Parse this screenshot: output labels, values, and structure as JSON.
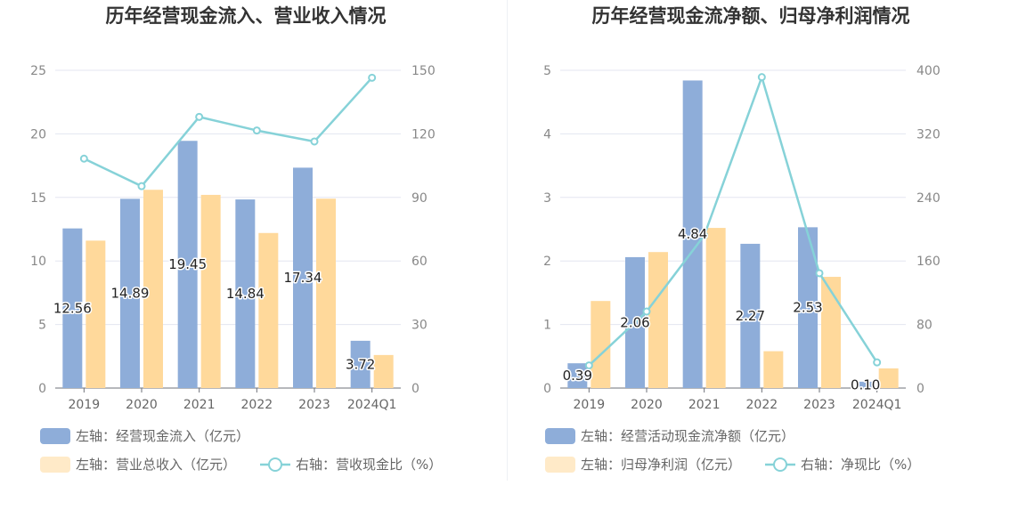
{
  "chart_data": [
    {
      "type": "bar",
      "title": "历年经营现金流入、营业收入情况",
      "categories": [
        "2019",
        "2020",
        "2021",
        "2022",
        "2023",
        "2024Q1"
      ],
      "left_axis": {
        "min": 0,
        "max": 25,
        "ticks": [
          "0",
          "5",
          "10",
          "15",
          "20",
          "25"
        ]
      },
      "right_axis": {
        "min": 0,
        "max": 150,
        "ticks": [
          "0",
          "30",
          "60",
          "90",
          "120",
          "150"
        ]
      },
      "series": [
        {
          "name": "左轴：经营现金流入（亿元）",
          "kind": "bar",
          "axis": "left",
          "color": "#8eadd9",
          "values": [
            12.56,
            14.89,
            19.45,
            14.84,
            17.34,
            3.72
          ],
          "labels": [
            "12.56",
            "14.89",
            "19.45",
            "14.84",
            "17.34",
            "3.72"
          ]
        },
        {
          "name": "左轴：营业总收入（亿元）",
          "kind": "bar",
          "axis": "left",
          "color": "#ffd99b",
          "values": [
            11.6,
            15.6,
            15.2,
            12.2,
            14.9,
            2.6
          ]
        },
        {
          "name": "右轴：营收现金比（%）",
          "kind": "line",
          "axis": "right",
          "color": "#86d2d8",
          "values": [
            108.3,
            95.3,
            128.0,
            121.6,
            116.4,
            146.5
          ]
        }
      ],
      "grid": true,
      "legend_position": "bottom"
    },
    {
      "type": "bar",
      "title": "历年经营现金流净额、归母净利润情况",
      "categories": [
        "2019",
        "2020",
        "2021",
        "2022",
        "2023",
        "2024Q1"
      ],
      "left_axis": {
        "min": 0,
        "max": 5,
        "ticks": [
          "0",
          "1",
          "2",
          "3",
          "4",
          "5"
        ]
      },
      "right_axis": {
        "min": 0,
        "max": 400,
        "ticks": [
          "0",
          "80",
          "160",
          "240",
          "320",
          "400"
        ]
      },
      "series": [
        {
          "name": "左轴：经营活动现金流净额（亿元）",
          "kind": "bar",
          "axis": "left",
          "color": "#8eadd9",
          "values": [
            0.39,
            2.06,
            4.84,
            2.27,
            2.53,
            0.1
          ],
          "labels": [
            "0.39",
            "2.06",
            "4.84",
            "2.27",
            "2.53",
            "0.10"
          ]
        },
        {
          "name": "左轴：归母净利润（亿元）",
          "kind": "bar",
          "axis": "left",
          "color": "#ffd99b",
          "values": [
            1.37,
            2.14,
            2.52,
            0.58,
            1.75,
            0.31
          ]
        },
        {
          "name": "右轴：净现比（%）",
          "kind": "line",
          "axis": "right",
          "color": "#86d2d8",
          "values": [
            28.5,
            96.3,
            192.1,
            391.4,
            144.6,
            32.3
          ]
        }
      ],
      "grid": true,
      "legend_position": "bottom"
    }
  ]
}
